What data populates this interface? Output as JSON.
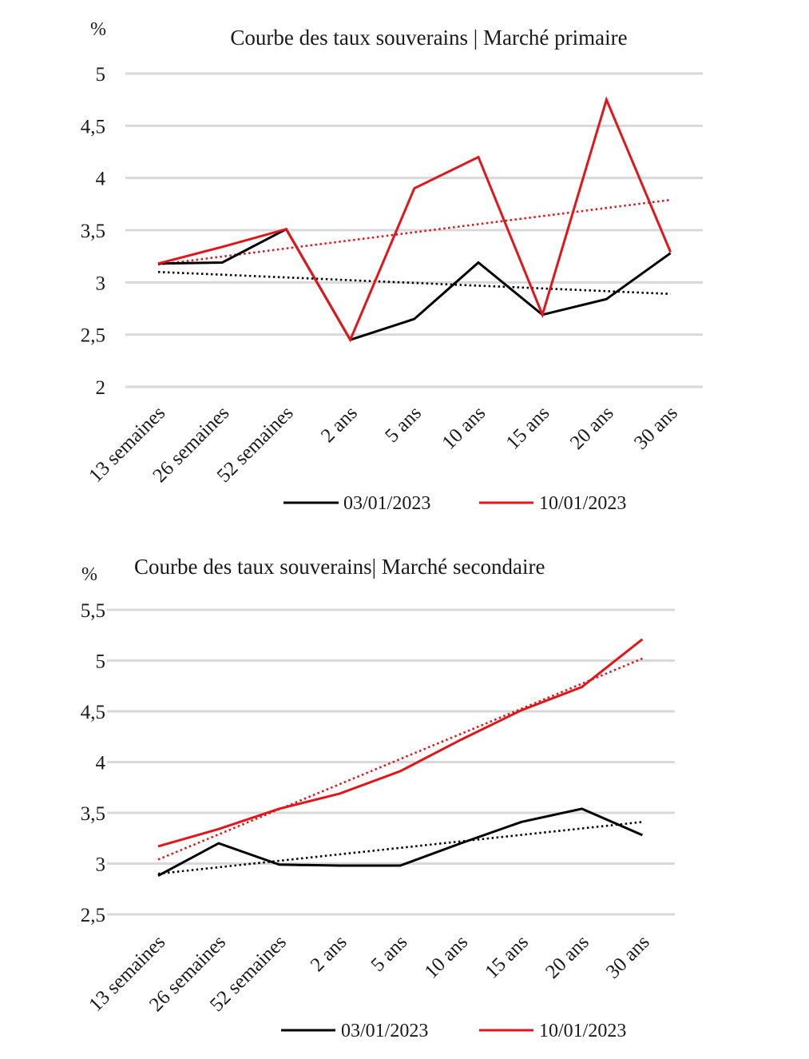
{
  "chart_data": [
    {
      "type": "line",
      "title": "Courbe des taux souverains | Marché primaire",
      "unit_label": "%",
      "categories": [
        "13 semaines",
        "26 semaines",
        "52 semaines",
        "2 ans",
        "5 ans",
        "10 ans",
        "15 ans",
        "20 ans",
        "30 ans"
      ],
      "y_ticks": [
        "5",
        "4,5",
        "4",
        "3,5",
        "3",
        "2,5",
        "2"
      ],
      "ylim": [
        2,
        5
      ],
      "grid": true,
      "legend_position": "bottom",
      "trendlines": "linear, dotted",
      "series": [
        {
          "name": "03/01/2023",
          "color": "#000000",
          "values": [
            3.18,
            3.19,
            3.51,
            2.45,
            2.65,
            3.19,
            2.69,
            2.84,
            3.28
          ],
          "trend": [
            3.1,
            2.89
          ]
        },
        {
          "name": "10/01/2023",
          "color": "#e0161b",
          "values": [
            3.18,
            3.34,
            3.51,
            2.45,
            3.9,
            4.2,
            2.69,
            4.75,
            3.29
          ],
          "trend": [
            3.17,
            3.79
          ]
        }
      ]
    },
    {
      "type": "line",
      "title": "Courbe des taux souverains| Marché secondaire",
      "unit_label": "%",
      "categories": [
        "13 semaines",
        "26 semaines",
        "52 semaines",
        "2 ans",
        "5 ans",
        "10 ans",
        "15 ans",
        "20 ans",
        "30 ans"
      ],
      "y_ticks": [
        "5,5",
        "5",
        "4,5",
        "4",
        "3,5",
        "3",
        "2,5"
      ],
      "ylim": [
        2.5,
        5.5
      ],
      "grid": true,
      "legend_position": "bottom",
      "trendlines": "linear, dotted",
      "series": [
        {
          "name": "03/01/2023",
          "color": "#000000",
          "values": [
            2.88,
            3.2,
            2.99,
            2.98,
            2.98,
            3.2,
            3.41,
            3.54,
            3.28
          ],
          "trend": [
            2.9,
            3.41
          ]
        },
        {
          "name": "10/01/2023",
          "color": "#e0161b",
          "values": [
            3.17,
            3.34,
            3.54,
            3.69,
            3.91,
            4.22,
            4.51,
            4.74,
            5.21
          ],
          "trend": [
            3.04,
            5.02
          ]
        }
      ]
    }
  ]
}
